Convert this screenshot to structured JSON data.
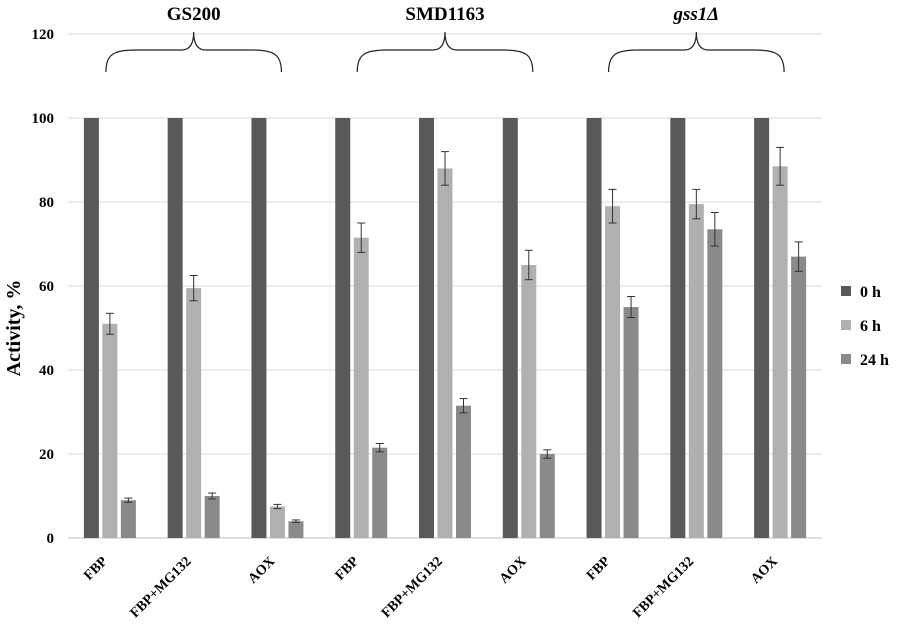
{
  "chart_data": {
    "type": "bar",
    "ylabel": "Activity, %",
    "ylim": [
      0,
      120
    ],
    "yticks": [
      0,
      20,
      40,
      60,
      80,
      100,
      120
    ],
    "grid": true,
    "legend_position": "right",
    "groups": [
      {
        "label": "GS200",
        "italic": false
      },
      {
        "label": "SMD1163",
        "italic": false
      },
      {
        "label": "gss1Δ",
        "italic": true
      }
    ],
    "categories": [
      "FBP",
      "FBP+MG132",
      "AOX",
      "FBP",
      "FBP+MG132",
      "AOX",
      "FBP",
      "FBP+MG132",
      "AOX"
    ],
    "series": [
      {
        "name": "0 h",
        "color": "#595959",
        "values": [
          100,
          100,
          100,
          100,
          100,
          100,
          100,
          100,
          100
        ],
        "errors": [
          0,
          0,
          0,
          0,
          0,
          0,
          0,
          0,
          0
        ]
      },
      {
        "name": "6 h",
        "color": "#b0b0b0",
        "values": [
          51,
          59.5,
          7.5,
          71.5,
          88,
          65,
          79,
          79.5,
          88.5
        ],
        "errors": [
          2.5,
          3,
          0.5,
          3.5,
          4,
          3.5,
          4,
          3.5,
          4.5
        ]
      },
      {
        "name": "24 h",
        "color": "#8a8a8a",
        "values": [
          9,
          10,
          4,
          21.5,
          31.5,
          20,
          55,
          73.5,
          67
        ],
        "errors": [
          0.5,
          0.7,
          0.3,
          1,
          1.7,
          1,
          2.5,
          4,
          3.5
        ]
      }
    ]
  }
}
